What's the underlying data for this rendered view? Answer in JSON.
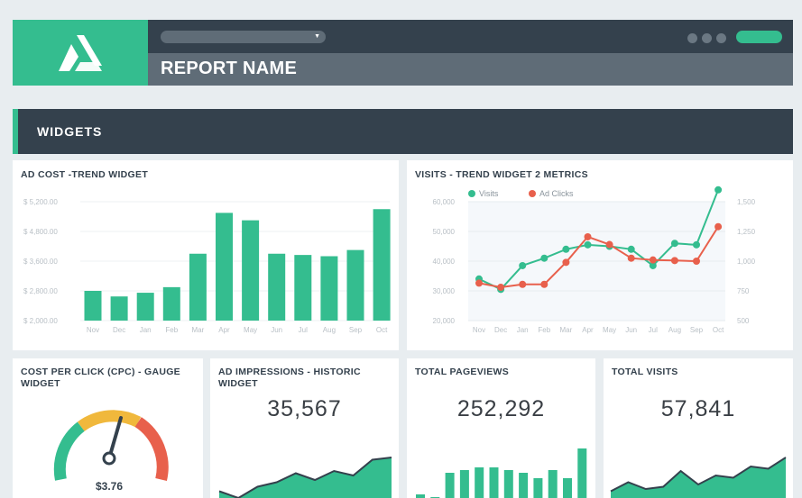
{
  "header": {
    "report_name": "REPORT NAME",
    "logo_icon": "triangle-logo-icon",
    "accent_color": "#34bd8f",
    "dark_color": "#34414d"
  },
  "section": {
    "title": "WIDGETS"
  },
  "ad_cost": {
    "title": "AD COST -TREND WIDGET",
    "chart_data": {
      "type": "bar",
      "categories": [
        "Nov",
        "Dec",
        "Jan",
        "Feb",
        "Mar",
        "Apr",
        "May",
        "Jun",
        "Jul",
        "Aug",
        "Sep",
        "Oct"
      ],
      "values": [
        2800,
        2650,
        2750,
        2900,
        3900,
        5050,
        4950,
        3900,
        3850,
        3800,
        4050,
        5100
      ],
      "yticks": [
        "$ 5,200.00",
        "$ 4,800.00",
        "$ 3,600.00",
        "$ 2,800.00",
        "$ 2,000.00"
      ],
      "color": "#34bd8f"
    }
  },
  "visits": {
    "title": "VISITS - TREND WIDGET 2 METRICS",
    "chart_data": {
      "type": "line",
      "categories": [
        "Nov",
        "Dec",
        "Jan",
        "Feb",
        "Mar",
        "Apr",
        "May",
        "Jun",
        "Jul",
        "Aug",
        "Sep",
        "Oct"
      ],
      "series": [
        {
          "name": "Visits",
          "color": "#34bd8f",
          "axis": "left",
          "values": [
            34000,
            30500,
            38500,
            41000,
            44000,
            45500,
            45000,
            44000,
            38500,
            46000,
            45500,
            64000
          ]
        },
        {
          "name": "Ad Clicks",
          "color": "#e8604c",
          "axis": "right",
          "values": [
            815,
            780,
            805,
            805,
            990,
            1205,
            1140,
            1025,
            1010,
            1005,
            1000,
            1290
          ]
        }
      ],
      "yticks_left": [
        "60,000",
        "50,000",
        "40,000",
        "30,000",
        "20,000"
      ],
      "yticks_right": [
        "1,500",
        "1,250",
        "1,000",
        "750",
        "500"
      ]
    }
  },
  "cpc": {
    "title_line1": "COST PER CLICK (CPC) - GAUGE",
    "title_line2": "WIDGET",
    "value": "$3.76",
    "colors": {
      "low": "#34bd8f",
      "mid": "#f0b83c",
      "high": "#e8604c"
    }
  },
  "impressions": {
    "title_line1": "AD IMPRESSIONS - HISTORIC",
    "title_line2": "WIDGET",
    "value": "35,567",
    "spark": [
      0.25,
      0.1,
      0.35,
      0.45,
      0.65,
      0.5,
      0.7,
      0.6,
      0.95,
      1.0
    ]
  },
  "pageviews": {
    "title": "TOTAL PAGEVIEWS",
    "value": "252,292",
    "spark": [
      0.15,
      0.1,
      0.55,
      0.6,
      0.65,
      0.65,
      0.6,
      0.55,
      0.45,
      0.6,
      0.45,
      1.0
    ]
  },
  "total_visits": {
    "title": "TOTAL VISITS",
    "value": "57,841",
    "spark": [
      0.25,
      0.45,
      0.3,
      0.35,
      0.7,
      0.4,
      0.6,
      0.55,
      0.8,
      0.75,
      1.0
    ]
  }
}
